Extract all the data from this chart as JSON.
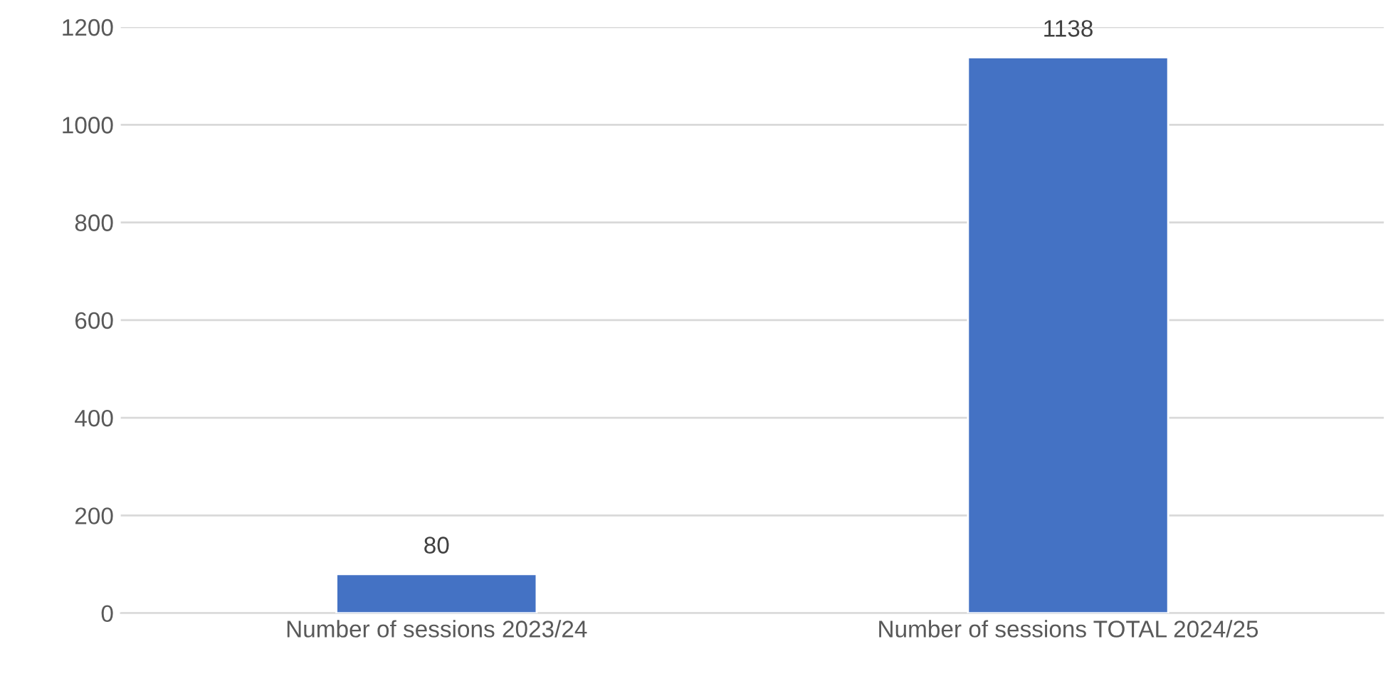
{
  "chart_data": {
    "type": "bar",
    "categories": [
      "Number of sessions 2023/24",
      "Number of sessions TOTAL 2024/25"
    ],
    "values": [
      80,
      1138
    ],
    "color": "#4472c4",
    "ylim": [
      0,
      1200
    ],
    "yticks": [
      0,
      200,
      400,
      600,
      800,
      1000,
      1200
    ],
    "grid": "y",
    "data_labels": true
  }
}
